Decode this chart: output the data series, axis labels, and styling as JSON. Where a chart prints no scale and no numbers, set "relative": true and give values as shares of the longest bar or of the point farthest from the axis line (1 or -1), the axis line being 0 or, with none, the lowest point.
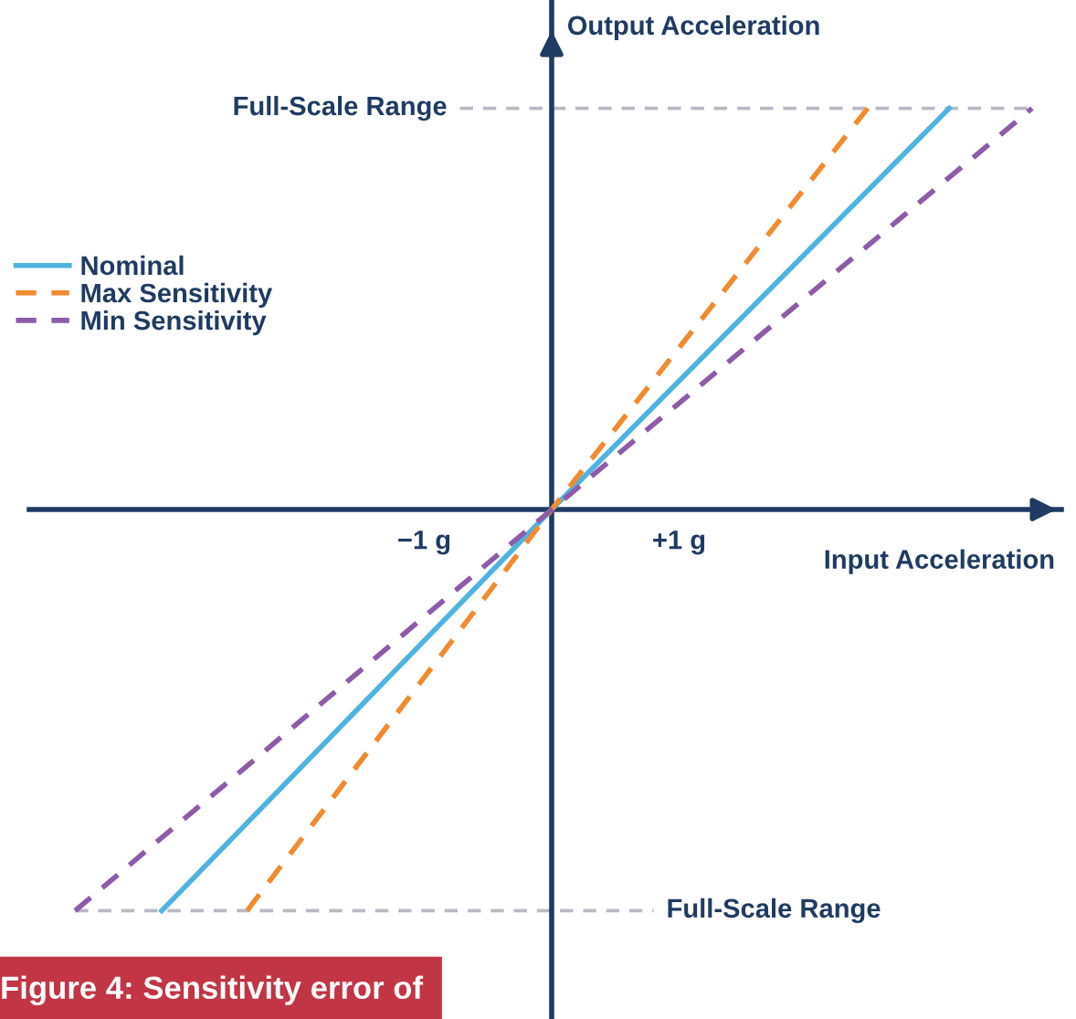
{
  "chart_data": {
    "type": "line",
    "relative": true,
    "xlabel": "Input Acceleration",
    "ylabel": "Output Acceleration",
    "xlim": [
      -4.1,
      4.0
    ],
    "xticks": [
      {
        "value": -1,
        "label": "−1 g"
      },
      {
        "value": 1,
        "label": "+1 g"
      }
    ],
    "series": [
      {
        "name": "Nominal",
        "color": "#4fb3e0",
        "line_style": "solid",
        "x": [
          -3.06,
          0,
          3.12
        ],
        "values": [
          -1,
          0,
          1
        ]
      },
      {
        "name": "Max Sensitivity",
        "color": "#f28a2e",
        "line_style": "dashed",
        "x": [
          -2.39,
          0,
          2.48
        ],
        "values": [
          -1,
          0,
          1
        ]
      },
      {
        "name": "Min Sensitivity",
        "color": "#8d5ba8",
        "line_style": "dashed",
        "x": [
          -3.74,
          0,
          3.77
        ],
        "values": [
          -1,
          0,
          1
        ]
      }
    ],
    "ref_lines": [
      {
        "axis": "y",
        "value": 1,
        "label": "Full-Scale Range",
        "color": "#b9b9c6",
        "line_style": "dashed"
      },
      {
        "axis": "y",
        "value": -1,
        "label": "Full-Scale Range",
        "color": "#b9b9c6",
        "line_style": "dashed"
      }
    ],
    "legend": "top left",
    "annotations": [
      "Figure 4: Sensitivity error of"
    ]
  }
}
